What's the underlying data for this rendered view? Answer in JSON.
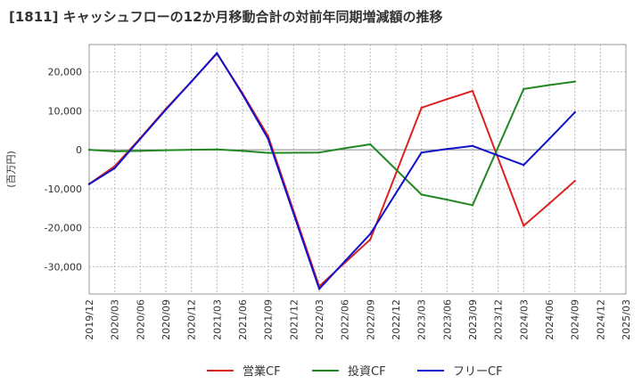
{
  "chart_data": {
    "type": "line",
    "title": "[1811]  キャッシュフローの12か月移動合計の対前年同期増減額の推移",
    "ylabel": "(百万円)",
    "xlabel": "",
    "ylim": [
      -37000,
      27000
    ],
    "yticks": [
      20000,
      10000,
      0,
      -10000,
      -20000,
      -30000
    ],
    "ytick_labels": [
      "20,000",
      "10,000",
      "0",
      "-10,000",
      "-20,000",
      "-30,000"
    ],
    "categories": [
      "2019/12",
      "2020/03",
      "2020/06",
      "2020/09",
      "2020/12",
      "2021/03",
      "2021/06",
      "2021/09",
      "2021/12",
      "2022/03",
      "2022/06",
      "2022/09",
      "2022/12",
      "2023/03",
      "2023/06",
      "2023/09",
      "2023/12",
      "2024/03",
      "2024/06",
      "2024/09",
      "2024/12",
      "2025/03"
    ],
    "series": [
      {
        "name": "営業CF",
        "color": "#dd2222",
        "values": [
          -8800,
          -4200,
          3000,
          10500,
          17500,
          24700,
          14500,
          3500,
          null,
          -35000,
          -29000,
          -23000,
          null,
          10800,
          13000,
          15100,
          null,
          -19500,
          -13800,
          -8000,
          null,
          null
        ]
      },
      {
        "name": "投資CF",
        "color": "#228822",
        "values": [
          0,
          -400,
          -300,
          -100,
          0,
          100,
          -300,
          -800,
          null,
          -700,
          400,
          1400,
          null,
          -11500,
          -12800,
          -14200,
          null,
          15600,
          16600,
          17500,
          null,
          null
        ]
      },
      {
        "name": "フリーCF",
        "color": "#1111cc",
        "values": [
          -8800,
          -4700,
          2800,
          10300,
          17500,
          24800,
          14200,
          2800,
          null,
          -35700,
          -28600,
          -21600,
          null,
          -700,
          200,
          1000,
          null,
          -3900,
          2800,
          9600,
          null,
          null
        ]
      }
    ],
    "grid": true,
    "legend": "bottom"
  }
}
